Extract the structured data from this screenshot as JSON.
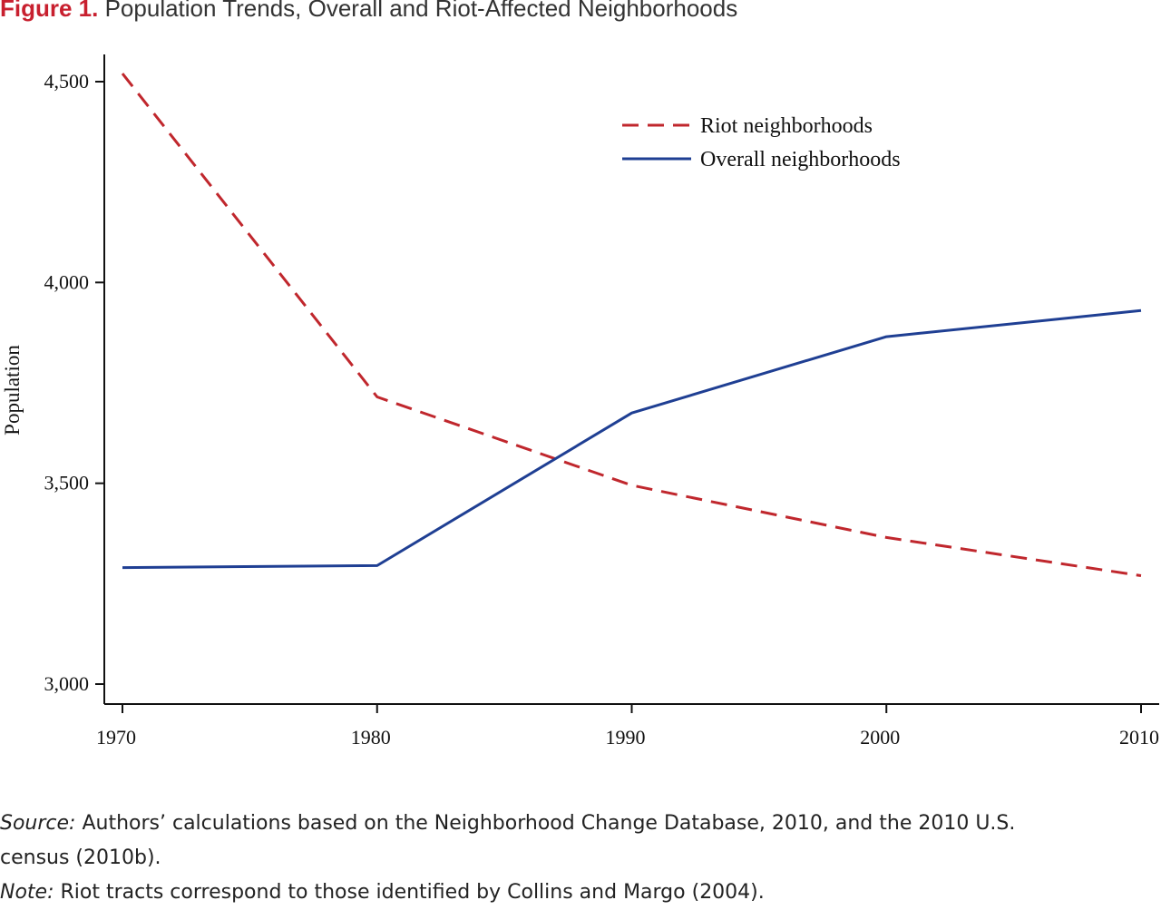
{
  "figure": {
    "label": "Figure 1.",
    "title": "Population Trends, Overall and Riot-Affected Neighborhoods"
  },
  "chart_data": {
    "type": "line",
    "x": [
      1970,
      1980,
      1990,
      2000,
      2010
    ],
    "xticks": [
      "1970",
      "1980",
      "1990",
      "2000",
      "2010"
    ],
    "yticks": [
      "3,000",
      "3,500",
      "4,000",
      "4,500"
    ],
    "ytick_values": [
      3000,
      3500,
      4000,
      4500
    ],
    "xlim": [
      1970,
      2010
    ],
    "ylim": [
      2950,
      4575
    ],
    "xlabel": "",
    "ylabel": "Population",
    "grid": false,
    "legend_position": "top-right",
    "series": [
      {
        "name": "Riot neighborhoods",
        "values": [
          4520,
          3715,
          3495,
          3365,
          3270
        ],
        "color": "#c0272d",
        "style": "dashed"
      },
      {
        "name": "Overall neighborhoods",
        "values": [
          3290,
          3295,
          3675,
          3865,
          3930
        ],
        "color": "#1f3f93",
        "style": "solid"
      }
    ]
  },
  "notes": {
    "source_label": "Source:",
    "source_text": "Authors’ calculations based on the Neighborhood Change Database, 2010, and the 2010 U.S.",
    "source_text_cont": "census (2010b).",
    "note_label": "Note:",
    "note_text": "Riot tracts correspond to those identified by Collins and Margo (2004)."
  }
}
